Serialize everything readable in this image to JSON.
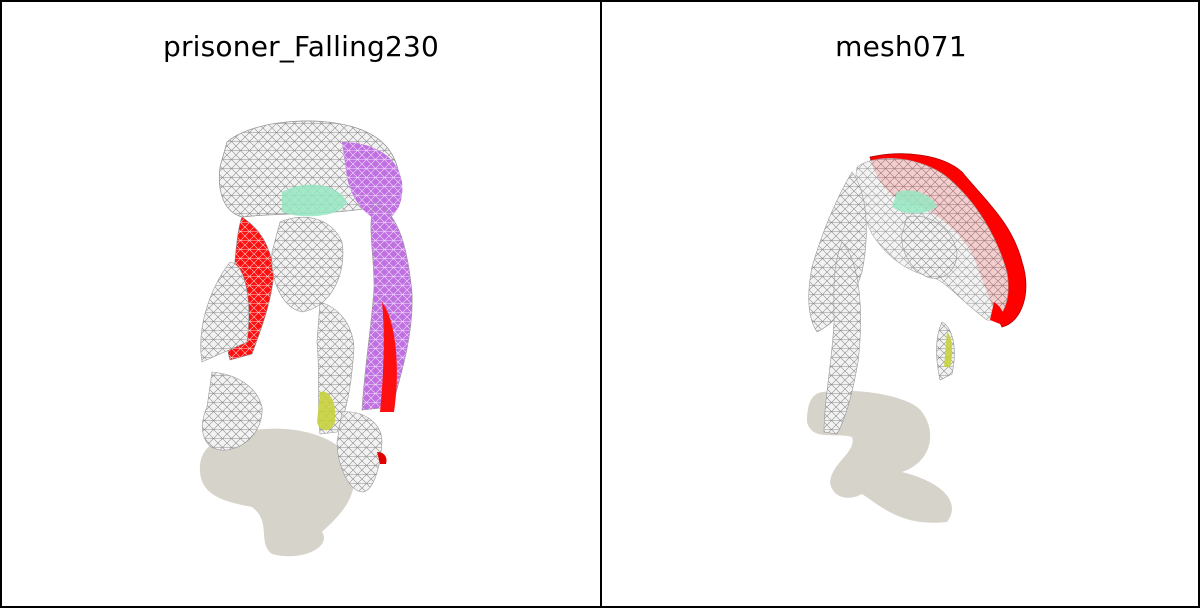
{
  "panels": [
    {
      "title": "prisoner_Falling230"
    },
    {
      "title": "mesh071"
    }
  ],
  "colors": {
    "background": "#ffffff",
    "border": "#000000",
    "shadow": "#d6d3ca",
    "mesh_fill": "#eeeeee",
    "wire": "#9a9a9a",
    "highlight_red": "#ff0000",
    "highlight_purple": "#c86ee6",
    "highlight_green": "#96e6c3",
    "highlight_yellow": "#c8d23c"
  }
}
